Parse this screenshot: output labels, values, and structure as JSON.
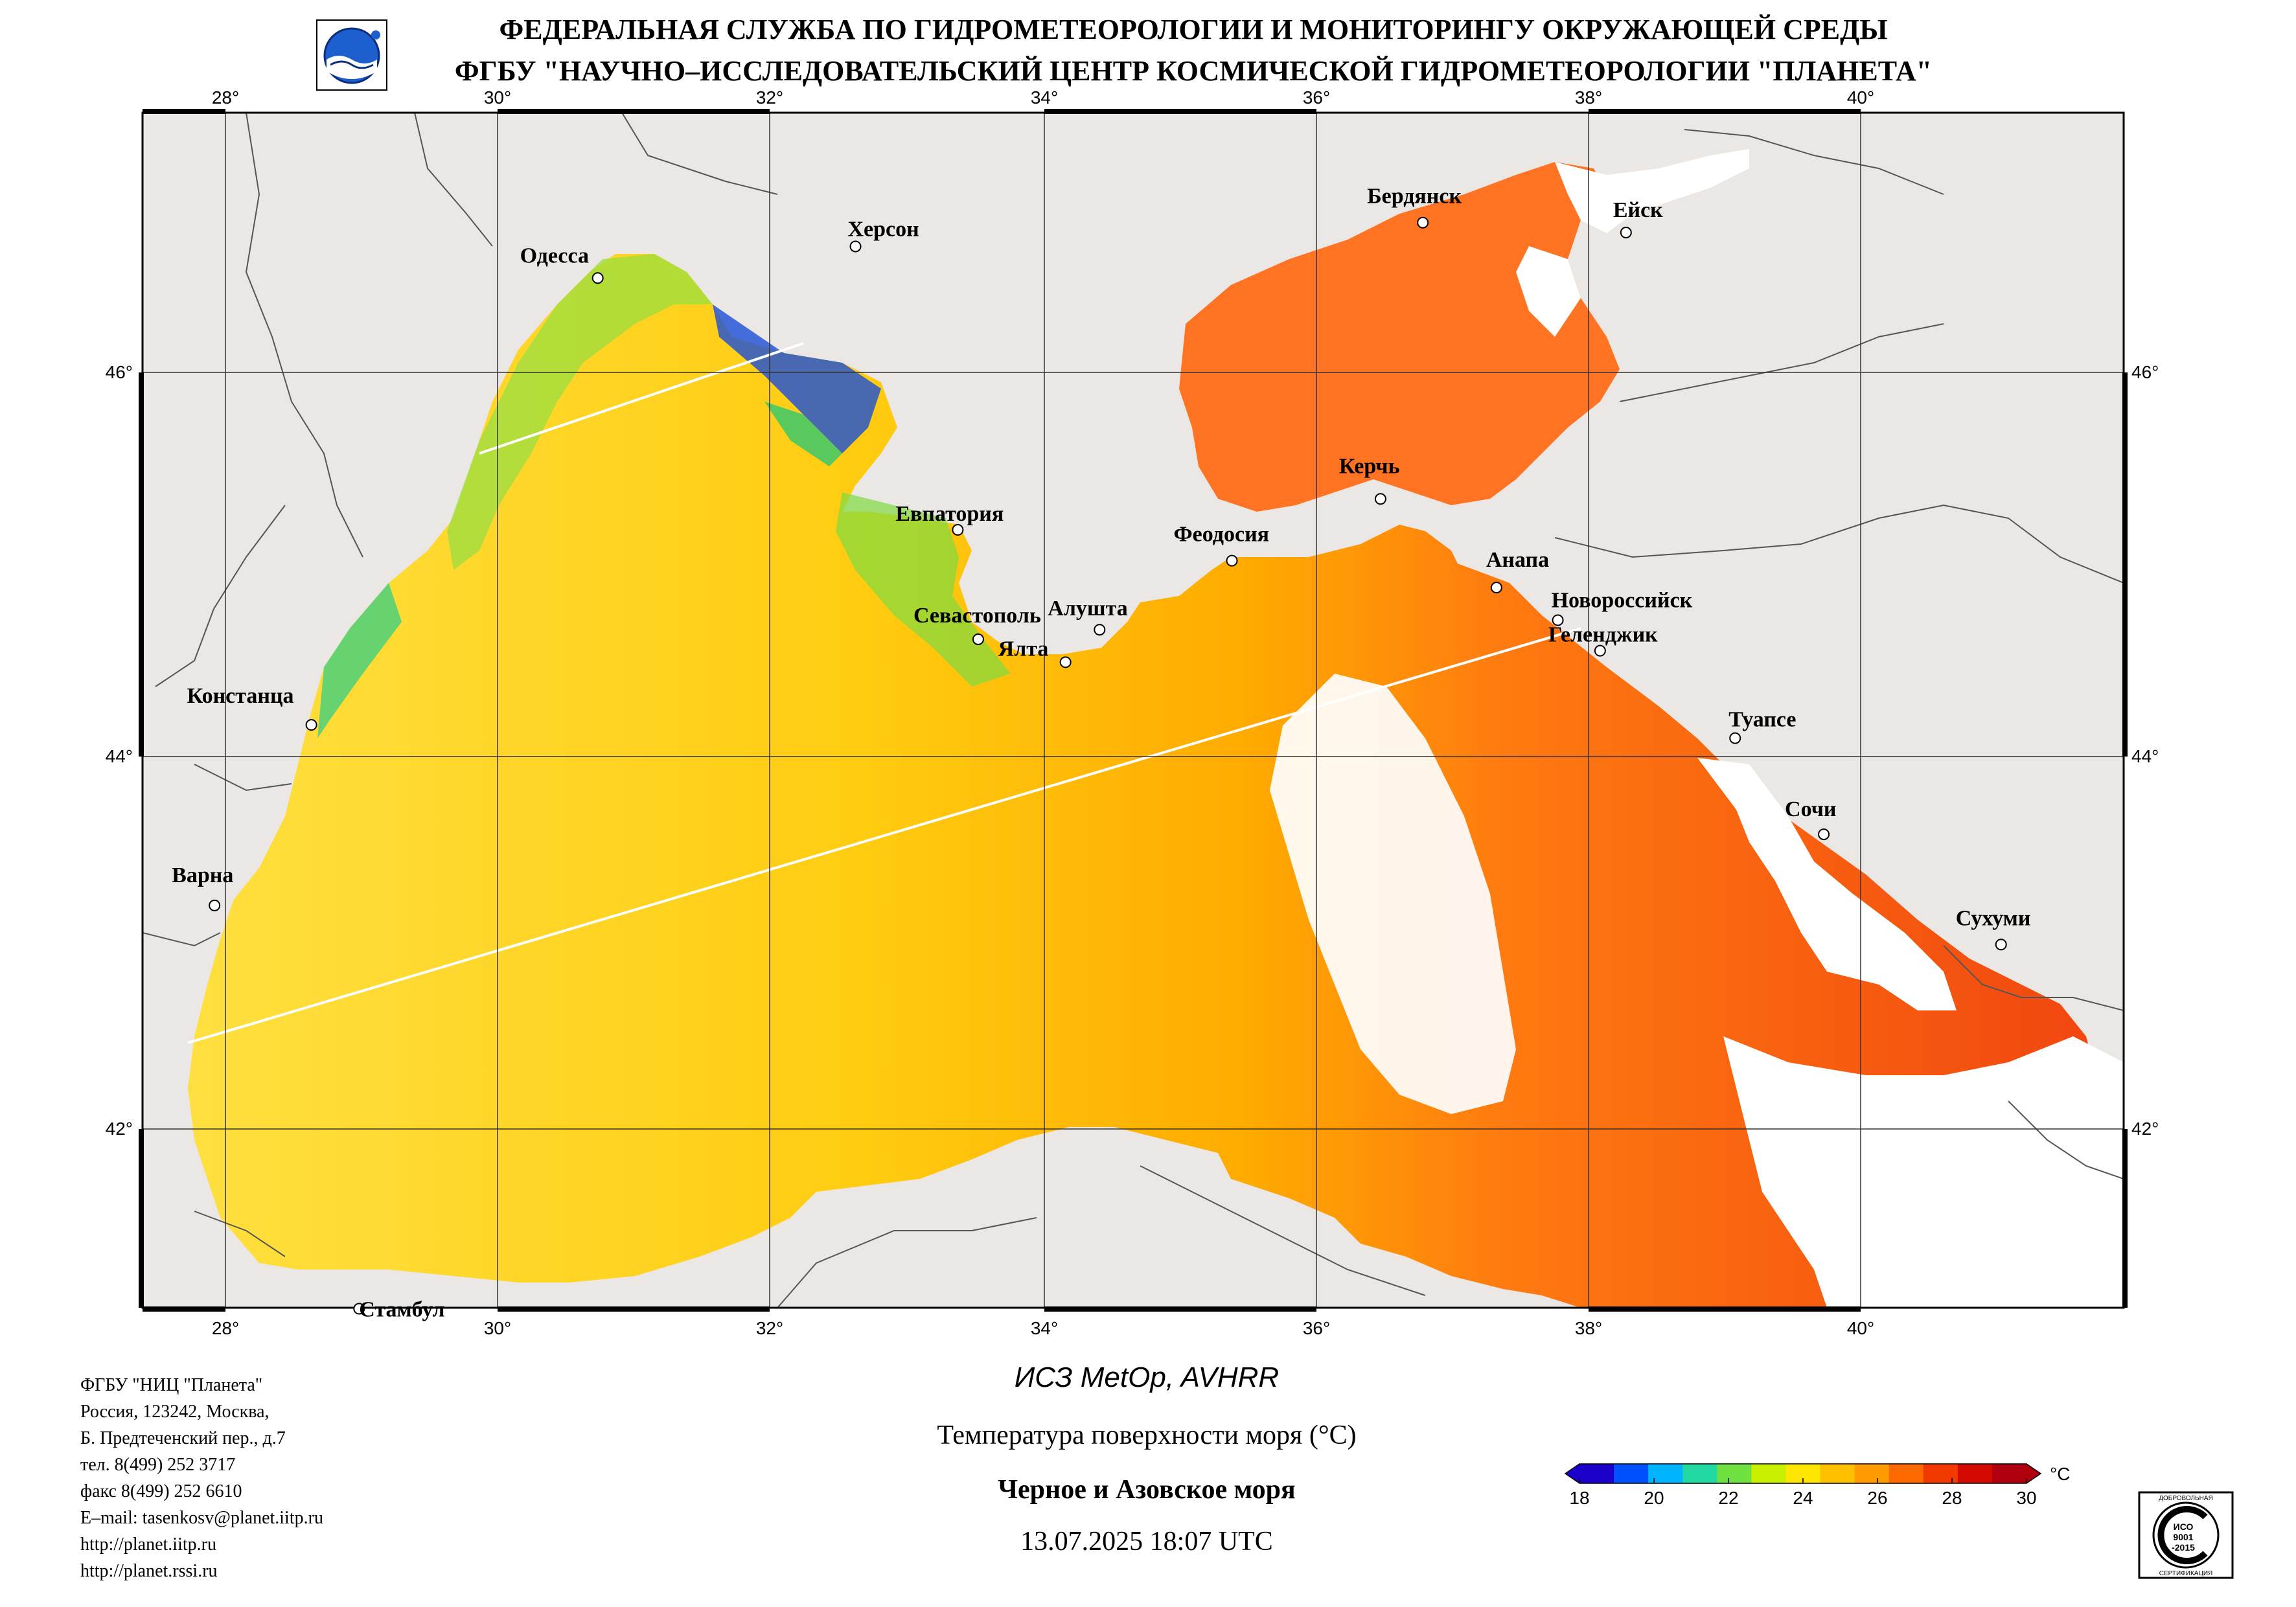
{
  "header": {
    "line1": "ФЕДЕРАЛЬНАЯ СЛУЖБА ПО ГИДРОМЕТЕОРОЛОГИИ И МОНИТОРИНГУ ОКРУЖАЮЩЕЙ СРЕДЫ",
    "line2": "ФГБУ \"НАУЧНО–ИССЛЕДОВАТЕЛЬСКИЙ ЦЕНТР КОСМИЧЕСКОЙ ГИДРОМЕТЕОРОЛОГИИ \"ПЛАНЕТА\""
  },
  "map": {
    "lon_ticks": [
      "28°",
      "30°",
      "32°",
      "34°",
      "36°",
      "38°",
      "40°"
    ],
    "lat_ticks": [
      "46°",
      "44°",
      "42°"
    ],
    "cities": [
      {
        "name": "Одесса",
        "lon": 30.73,
        "lat": 46.48
      },
      {
        "name": "Херсон",
        "lon": 32.62,
        "lat": 46.64
      },
      {
        "name": "Бердянск",
        "lon": 36.78,
        "lat": 46.76
      },
      {
        "name": "Ейск",
        "lon": 38.27,
        "lat": 46.71
      },
      {
        "name": "Евпатория",
        "lon": 33.37,
        "lat": 45.19
      },
      {
        "name": "Керчь",
        "lon": 36.47,
        "lat": 45.35
      },
      {
        "name": "Феодосия",
        "lon": 35.38,
        "lat": 45.03
      },
      {
        "name": "Анапа",
        "lon": 37.32,
        "lat": 44.89
      },
      {
        "name": "Новороссийск",
        "lon": 37.77,
        "lat": 44.72
      },
      {
        "name": "Геленджик",
        "lon": 38.08,
        "lat": 44.56
      },
      {
        "name": "Севастополь",
        "lon": 33.52,
        "lat": 44.62
      },
      {
        "name": "Алушта",
        "lon": 34.41,
        "lat": 44.67
      },
      {
        "name": "Ялта",
        "lon": 34.16,
        "lat": 44.5
      },
      {
        "name": "Констанца",
        "lon": 28.63,
        "lat": 44.17
      },
      {
        "name": "Туапсе",
        "lon": 39.07,
        "lat": 44.1
      },
      {
        "name": "Сочи",
        "lon": 39.72,
        "lat": 43.59
      },
      {
        "name": "Варна",
        "lon": 27.92,
        "lat": 43.21
      },
      {
        "name": "Сухуми",
        "lon": 41.02,
        "lat": 43.0
      },
      {
        "name": "Стамбул",
        "lon": 28.98,
        "lat": 41.01
      }
    ]
  },
  "footer": {
    "info": [
      "ФГБУ \"НИЦ \"Планета\"",
      "Россия, 123242, Москва,",
      "Б. Предтеченский пер., д.7",
      "тел. 8(499) 252 3717",
      "факс 8(499) 252 6610",
      "E–mail: tasenkosv@planet.iitp.ru",
      "http://planet.iitp.ru",
      "http://planet.rssi.ru"
    ],
    "satellite": "ИСЗ MetOp, AVHRR",
    "parameter": "Температура поверхности моря (°C)",
    "region": "Черное и Азовское моря",
    "datetime": "13.07.2025 18:07 UTC"
  },
  "colorbar": {
    "unit": "°C",
    "ticks": [
      "18",
      "20",
      "22",
      "24",
      "26",
      "28",
      "30"
    ],
    "colors": [
      "#1a00c8",
      "#0050ff",
      "#00b4ff",
      "#20d8a0",
      "#6ee040",
      "#c8f000",
      "#ffe600",
      "#ffc000",
      "#ff9a00",
      "#ff6a00",
      "#f23a00",
      "#d40a00",
      "#b00010"
    ]
  },
  "certificate": {
    "top_text": "ДОБРОВОЛЬНАЯ",
    "mid1": "ИСО",
    "mid2": "9001",
    "mid3": "-2015",
    "bottom_text": "СЕРТИФИКАЦИЯ"
  }
}
